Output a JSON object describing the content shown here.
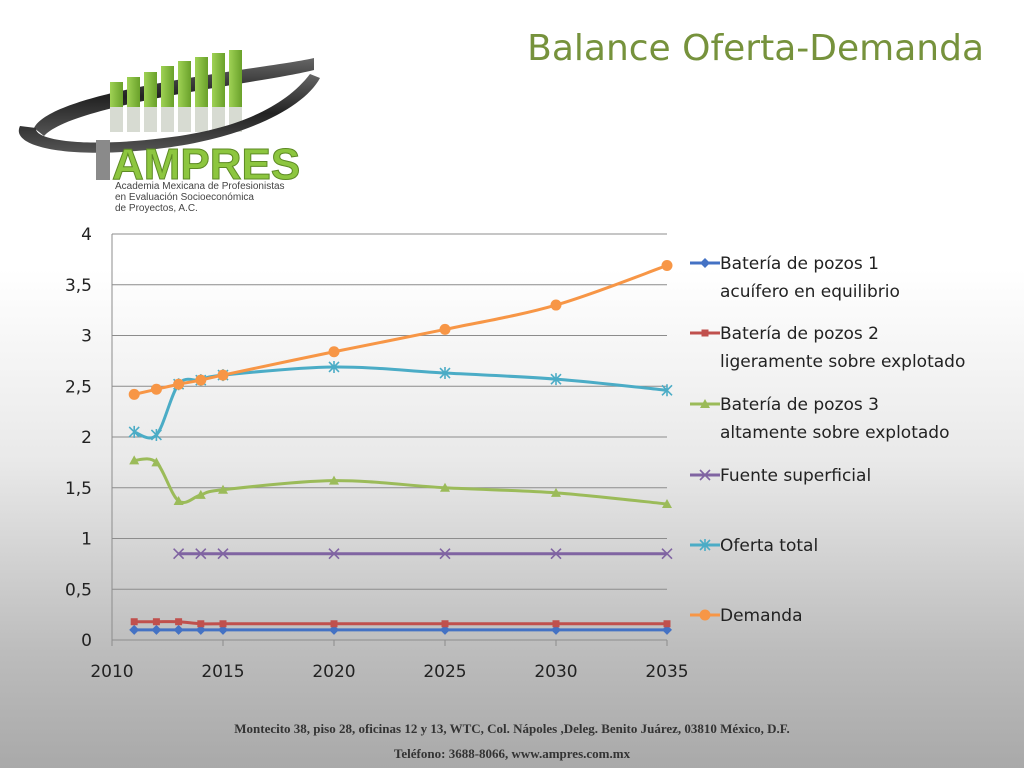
{
  "slide": {
    "title": "Balance Oferta-Demanda",
    "logo": {
      "name": "AMPRES",
      "subtitle_lines": [
        "Academia Mexicana de Profesionistas",
        "en Evaluación Socioeconómica",
        "de Proyectos, A.C."
      ]
    },
    "footer": {
      "line1": "Montecito 38, piso 28, oficinas 12 y 13, WTC, Col. Nápoles ,Deleg. Benito Juárez, 03810 México, D.F.",
      "line2": "Teléfono: 3688-8066, www.ampres.com.mx"
    },
    "colors": {
      "title": "#76923c",
      "logo_green": "#8dc63f"
    }
  },
  "chart_data": {
    "type": "line",
    "xlim": [
      2010,
      2035
    ],
    "ylim": [
      0,
      4
    ],
    "x_ticks": [
      "2010",
      "2015",
      "2020",
      "2025",
      "2030",
      "2035"
    ],
    "y_ticks": [
      "0",
      "0,5",
      "1",
      "1,5",
      "2",
      "2,5",
      "3",
      "3,5",
      "4"
    ],
    "grid": true,
    "legend_position": "right",
    "series": [
      {
        "name": "Batería de pozos 1\nacuífero en equilibrio",
        "color": "#4472c4",
        "marker": "diamond",
        "x": [
          2011,
          2012,
          2013,
          2014,
          2015,
          2020,
          2025,
          2030,
          2035
        ],
        "y": [
          0.1,
          0.1,
          0.1,
          0.1,
          0.1,
          0.1,
          0.1,
          0.1,
          0.1
        ]
      },
      {
        "name": "Batería de pozos 2\nligeramente sobre explotado",
        "color": "#c0504d",
        "marker": "square",
        "x": [
          2011,
          2012,
          2013,
          2014,
          2015,
          2020,
          2025,
          2030,
          2035
        ],
        "y": [
          0.18,
          0.18,
          0.18,
          0.16,
          0.16,
          0.16,
          0.16,
          0.16,
          0.16
        ]
      },
      {
        "name": "Batería de pozos 3\naltamente sobre explotado",
        "color": "#9bbb59",
        "marker": "triangle",
        "x": [
          2011,
          2012,
          2013,
          2014,
          2015,
          2020,
          2025,
          2030,
          2035
        ],
        "y": [
          1.77,
          1.75,
          1.37,
          1.43,
          1.48,
          1.57,
          1.5,
          1.45,
          1.34
        ]
      },
      {
        "name": "Fuente superficial",
        "color": "#8064a2",
        "marker": "x",
        "x": [
          2013,
          2014,
          2015,
          2020,
          2025,
          2030,
          2035
        ],
        "y": [
          0.85,
          0.85,
          0.85,
          0.85,
          0.85,
          0.85,
          0.85
        ]
      },
      {
        "name": "Oferta total",
        "color": "#4bacc6",
        "marker": "star",
        "x": [
          2011,
          2012,
          2013,
          2014,
          2015,
          2020,
          2025,
          2030,
          2035
        ],
        "y": [
          2.05,
          2.02,
          2.52,
          2.56,
          2.61,
          2.69,
          2.63,
          2.57,
          2.46
        ]
      },
      {
        "name": "Demanda",
        "color": "#f79646",
        "marker": "circle",
        "x": [
          2011,
          2012,
          2013,
          2014,
          2015,
          2020,
          2025,
          2030,
          2035
        ],
        "y": [
          2.42,
          2.47,
          2.52,
          2.56,
          2.61,
          2.84,
          3.06,
          3.3,
          3.69
        ]
      }
    ]
  }
}
